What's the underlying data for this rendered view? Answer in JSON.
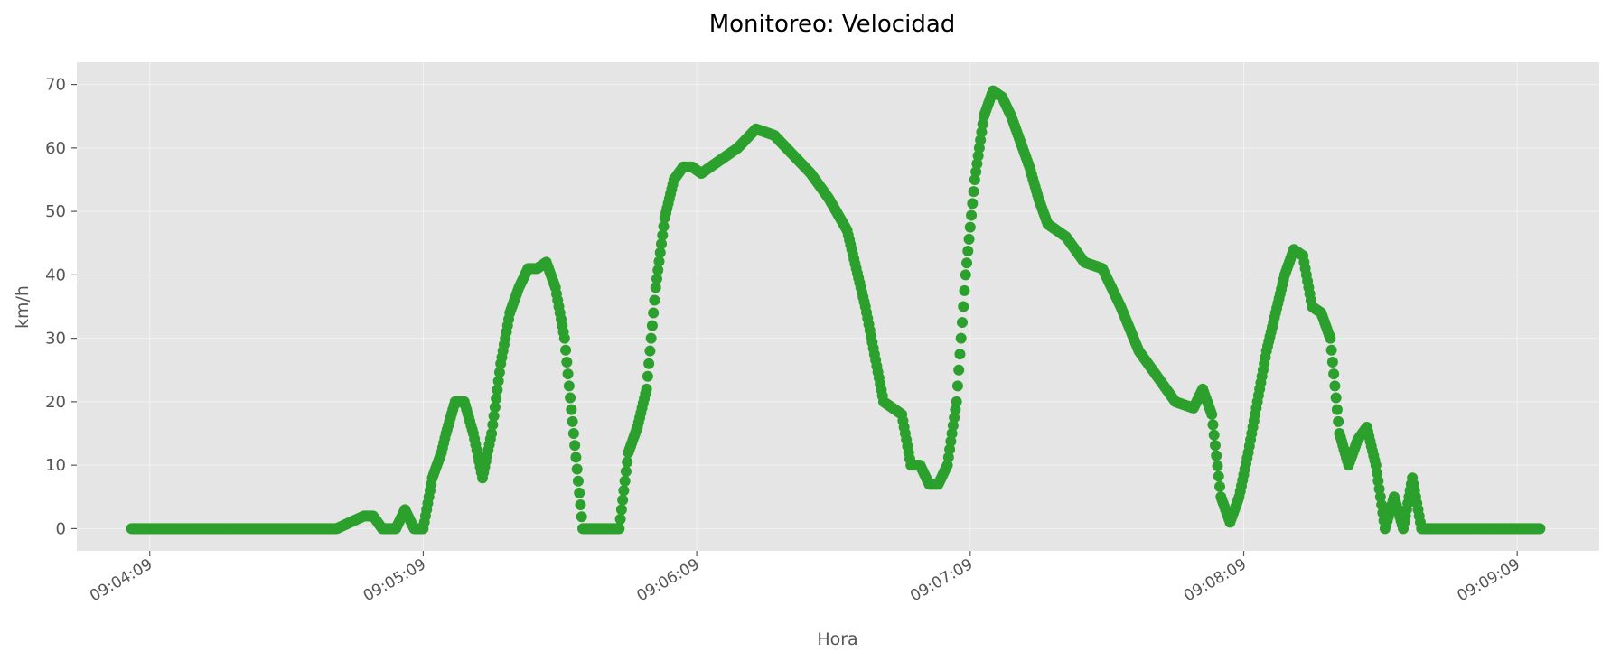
{
  "chart_data": {
    "type": "scatter",
    "title": "Monitoreo: Velocidad",
    "xlabel": "Hora",
    "ylabel": "km/h",
    "x_unit": "time (HH:MM:SS)",
    "xlim": [
      "09:03:53",
      "09:09:27"
    ],
    "ylim": [
      -3.5,
      73.5
    ],
    "yticks": [
      0,
      10,
      20,
      30,
      40,
      50,
      60,
      70
    ],
    "xticks": [
      "09:04:09",
      "09:05:09",
      "09:06:09",
      "09:07:09",
      "09:08:09",
      "09:09:09"
    ],
    "grid": true,
    "background": "#e5e5e5",
    "marker_color": "#2ca02c",
    "series": [
      {
        "x": [
          "09:04:05",
          "09:04:10",
          "09:04:20",
          "09:04:30",
          "09:04:40",
          "09:04:50",
          "09:04:56",
          "09:04:58",
          "09:05:00",
          "09:05:03",
          "09:05:05",
          "09:05:07",
          "09:05:09",
          "09:05:11",
          "09:05:13",
          "09:05:14",
          "09:05:16",
          "09:05:18",
          "09:05:20",
          "09:05:22",
          "09:05:24",
          "09:05:26",
          "09:05:28",
          "09:05:30",
          "09:05:32",
          "09:05:34",
          "09:05:36",
          "09:05:38",
          "09:05:40",
          "09:05:42",
          "09:05:44",
          "09:05:46",
          "09:05:48",
          "09:05:50",
          "09:05:52",
          "09:05:54",
          "09:05:56",
          "09:05:58",
          "09:06:00",
          "09:06:02",
          "09:06:04",
          "09:06:06",
          "09:06:08",
          "09:06:10",
          "09:06:12",
          "09:06:14",
          "09:06:18",
          "09:06:22",
          "09:06:26",
          "09:06:30",
          "09:06:34",
          "09:06:38",
          "09:06:42",
          "09:06:46",
          "09:06:50",
          "09:06:54",
          "09:06:56",
          "09:06:58",
          "09:07:00",
          "09:07:02",
          "09:07:04",
          "09:07:06",
          "09:07:08",
          "09:07:10",
          "09:07:12",
          "09:07:14",
          "09:07:16",
          "09:07:18",
          "09:07:20",
          "09:07:22",
          "09:07:24",
          "09:07:26",
          "09:07:30",
          "09:07:34",
          "09:07:38",
          "09:07:42",
          "09:07:46",
          "09:07:50",
          "09:07:54",
          "09:07:58",
          "09:08:00",
          "09:08:02",
          "09:08:04",
          "09:08:06",
          "09:08:08",
          "09:08:10",
          "09:08:12",
          "09:08:14",
          "09:08:16",
          "09:08:18",
          "09:08:20",
          "09:08:22",
          "09:08:24",
          "09:08:26",
          "09:08:28",
          "09:08:30",
          "09:08:32",
          "09:08:34",
          "09:08:36",
          "09:08:38",
          "09:08:40",
          "09:08:42",
          "09:08:44",
          "09:08:46",
          "09:08:48",
          "09:08:50",
          "09:08:52",
          "09:09:00",
          "09:09:09",
          "09:09:14"
        ],
        "y": [
          0,
          0,
          0,
          0,
          0,
          0,
          2,
          2,
          0,
          0,
          3,
          0,
          0,
          8,
          12,
          15,
          20,
          20,
          15,
          8,
          15,
          26,
          34,
          38,
          41,
          41,
          42,
          38,
          30,
          15,
          0,
          0,
          0,
          0,
          0,
          12,
          16,
          22,
          38,
          49,
          55,
          57,
          57,
          56,
          57,
          58,
          60,
          63,
          62,
          59,
          56,
          52,
          47,
          35,
          20,
          18,
          10,
          10,
          7,
          7,
          10,
          20,
          40,
          55,
          65,
          69,
          68,
          65,
          61,
          57,
          52,
          48,
          46,
          42,
          41,
          35,
          28,
          24,
          20,
          19,
          22,
          18,
          5,
          1,
          5,
          12,
          20,
          28,
          34,
          40,
          44,
          43,
          35,
          34,
          30,
          15,
          10,
          14,
          16,
          10,
          0,
          5,
          0,
          8,
          0,
          0,
          0,
          0,
          0,
          0
        ]
      }
    ]
  }
}
